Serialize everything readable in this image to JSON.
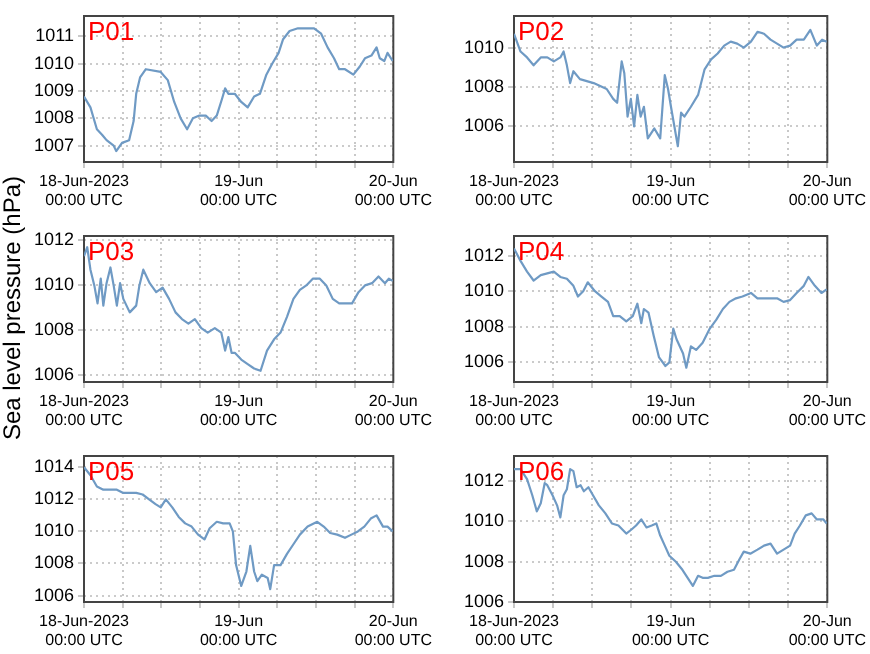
{
  "chart_data": [
    {
      "type": "line",
      "title": "P01",
      "xlim": [
        "2023-06-18T00:00",
        "2023-06-20T00:00"
      ],
      "xticks": [
        {
          "value": "2023-06-18T00:00",
          "label": "18-Jun-2023\n00:00 UTC"
        },
        {
          "value": "2023-06-18T06:00",
          "label": null
        },
        {
          "value": "2023-06-18T12:00",
          "label": null
        },
        {
          "value": "2023-06-18T18:00",
          "label": null
        },
        {
          "value": "2023-06-19T00:00",
          "label": "19-Jun\n00:00 UTC"
        },
        {
          "value": "2023-06-19T06:00",
          "label": null
        },
        {
          "value": "2023-06-19T12:00",
          "label": null
        },
        {
          "value": "2023-06-19T18:00",
          "label": null
        },
        {
          "value": "2023-06-20T00:00",
          "label": "20-Jun\n00:00 UTC"
        }
      ],
      "ylim": [
        1006.4,
        1011.75
      ],
      "yticks": [
        1007,
        1008,
        1009,
        1010,
        1011
      ],
      "grid": true,
      "marker": "none",
      "line_style": "solid",
      "x": [
        "2023-06-18T00:00",
        "2023-06-18T01:00",
        "2023-06-18T02:00",
        "2023-06-18T02:48",
        "2023-06-18T03:30",
        "2023-06-18T04:36",
        "2023-06-18T05:00",
        "2023-06-18T05:54",
        "2023-06-18T07:00",
        "2023-06-18T07:42",
        "2023-06-18T08:06",
        "2023-06-18T08:42",
        "2023-06-18T09:36",
        "2023-06-18T11:54",
        "2023-06-18T13:00",
        "2023-06-18T14:00",
        "2023-06-18T15:00",
        "2023-06-18T16:00",
        "2023-06-18T16:54",
        "2023-06-18T17:54",
        "2023-06-18T18:54",
        "2023-06-18T19:48",
        "2023-06-18T20:36",
        "2023-06-18T21:24",
        "2023-06-18T21:54",
        "2023-06-18T22:24",
        "2023-06-18T23:24",
        "2023-06-19T00:24",
        "2023-06-19T01:24",
        "2023-06-19T02:24",
        "2023-06-19T03:18",
        "2023-06-19T04:18",
        "2023-06-19T05:12",
        "2023-06-19T06:12",
        "2023-06-19T06:54",
        "2023-06-19T07:54",
        "2023-06-19T09:12",
        "2023-06-19T11:42",
        "2023-06-19T12:48",
        "2023-06-19T13:48",
        "2023-06-19T14:48",
        "2023-06-19T15:36",
        "2023-06-19T16:30",
        "2023-06-19T17:48",
        "2023-06-19T18:48",
        "2023-06-19T19:36",
        "2023-06-19T20:36",
        "2023-06-19T21:24",
        "2023-06-19T21:54",
        "2023-06-19T22:36",
        "2023-06-19T23:06",
        "2023-06-19T23:54"
      ],
      "series": [
        {
          "color": "#6f9ac4",
          "values": [
            1008.8,
            1008.4,
            1007.6,
            1007.4,
            1007.2,
            1007.0,
            1006.8,
            1007.1,
            1007.2,
            1007.9,
            1008.9,
            1009.5,
            1009.8,
            1009.7,
            1009.4,
            1008.6,
            1008.0,
            1007.6,
            1008.0,
            1008.1,
            1008.1,
            1007.9,
            1008.1,
            1008.7,
            1009.1,
            1008.9,
            1008.9,
            1008.6,
            1008.4,
            1008.8,
            1008.9,
            1009.6,
            1010.0,
            1010.4,
            1010.9,
            1011.2,
            1011.3,
            1011.3,
            1011.1,
            1010.6,
            1010.2,
            1009.8,
            1009.8,
            1009.6,
            1009.9,
            1010.2,
            1010.3,
            1010.6,
            1010.2,
            1010.1,
            1010.4,
            1010.1
          ]
        }
      ]
    },
    {
      "type": "line",
      "title": "P02",
      "xlim": [
        "2023-06-18T00:00",
        "2023-06-20T00:00"
      ],
      "xticks": [
        {
          "value": "2023-06-18T00:00",
          "label": "18-Jun-2023\n00:00 UTC"
        },
        {
          "value": "2023-06-18T06:00",
          "label": null
        },
        {
          "value": "2023-06-18T12:00",
          "label": null
        },
        {
          "value": "2023-06-18T18:00",
          "label": null
        },
        {
          "value": "2023-06-19T00:00",
          "label": "19-Jun\n00:00 UTC"
        },
        {
          "value": "2023-06-19T06:00",
          "label": null
        },
        {
          "value": "2023-06-19T12:00",
          "label": null
        },
        {
          "value": "2023-06-19T18:00",
          "label": null
        },
        {
          "value": "2023-06-20T00:00",
          "label": "20-Jun\n00:00 UTC"
        }
      ],
      "ylim": [
        1004.2,
        1011.6
      ],
      "yticks": [
        1006,
        1008,
        1010
      ],
      "grid": true,
      "marker": "none",
      "line_style": "solid",
      "x": [
        "2023-06-18T00:00",
        "2023-06-18T01:00",
        "2023-06-18T02:00",
        "2023-06-18T03:00",
        "2023-06-18T04:06",
        "2023-06-18T05:06",
        "2023-06-18T06:06",
        "2023-06-18T07:06",
        "2023-06-18T07:36",
        "2023-06-18T08:06",
        "2023-06-18T08:36",
        "2023-06-18T09:06",
        "2023-06-18T10:06",
        "2023-06-18T12:12",
        "2023-06-18T14:12",
        "2023-06-18T15:12",
        "2023-06-18T15:48",
        "2023-06-18T16:30",
        "2023-06-18T16:54",
        "2023-06-18T17:24",
        "2023-06-18T17:54",
        "2023-06-18T18:24",
        "2023-06-18T18:54",
        "2023-06-18T19:24",
        "2023-06-18T19:54",
        "2023-06-18T20:30",
        "2023-06-18T21:30",
        "2023-06-18T22:24",
        "2023-06-18T23:06",
        "2023-06-18T23:36",
        "2023-06-19T00:06",
        "2023-06-19T01:06",
        "2023-06-19T01:36",
        "2023-06-19T02:06",
        "2023-06-19T03:06",
        "2023-06-19T04:12",
        "2023-06-19T05:12",
        "2023-06-19T06:12",
        "2023-06-19T07:12",
        "2023-06-19T08:12",
        "2023-06-19T09:12",
        "2023-06-19T10:12",
        "2023-06-19T11:12",
        "2023-06-19T12:18",
        "2023-06-19T13:18",
        "2023-06-19T14:18",
        "2023-06-19T15:18",
        "2023-06-19T16:18",
        "2023-06-19T17:18",
        "2023-06-19T18:18",
        "2023-06-19T19:18",
        "2023-06-19T20:24",
        "2023-06-19T21:24",
        "2023-06-19T22:24",
        "2023-06-19T23:12",
        "2023-06-19T23:54"
      ],
      "series": [
        {
          "color": "#6f9ac4",
          "values": [
            1010.7,
            1009.8,
            1009.5,
            1009.1,
            1009.5,
            1009.5,
            1009.3,
            1009.5,
            1009.8,
            1009.1,
            1008.2,
            1008.8,
            1008.4,
            1008.2,
            1007.9,
            1007.4,
            1007.2,
            1009.3,
            1008.7,
            1006.5,
            1007.4,
            1006.0,
            1007.6,
            1006.5,
            1007.0,
            1005.4,
            1005.9,
            1005.4,
            1008.6,
            1007.9,
            1006.9,
            1005.0,
            1006.7,
            1006.5,
            1007.0,
            1007.6,
            1008.9,
            1009.4,
            1009.7,
            1010.1,
            1010.3,
            1010.2,
            1010.0,
            1010.3,
            1010.8,
            1010.7,
            1010.4,
            1010.2,
            1010.0,
            1010.1,
            1010.4,
            1010.4,
            1010.9,
            1010.1,
            1010.4,
            1010.3
          ]
        }
      ]
    },
    {
      "type": "line",
      "title": "P03",
      "ylabel": "Sea level pressure (hPa)",
      "xlim": [
        "2023-06-18T00:00",
        "2023-06-20T00:00"
      ],
      "xticks": [
        {
          "value": "2023-06-18T00:00",
          "label": "18-Jun-2023\n00:00 UTC"
        },
        {
          "value": "2023-06-18T06:00",
          "label": null
        },
        {
          "value": "2023-06-18T12:00",
          "label": null
        },
        {
          "value": "2023-06-18T18:00",
          "label": null
        },
        {
          "value": "2023-06-19T00:00",
          "label": "19-Jun\n00:00 UTC"
        },
        {
          "value": "2023-06-19T06:00",
          "label": null
        },
        {
          "value": "2023-06-19T12:00",
          "label": null
        },
        {
          "value": "2023-06-19T18:00",
          "label": null
        },
        {
          "value": "2023-06-20T00:00",
          "label": "20-Jun\n00:00 UTC"
        }
      ],
      "ylim": [
        1005.7,
        1012.2
      ],
      "yticks": [
        1006,
        1008,
        1010,
        1012
      ],
      "grid": true,
      "marker": "none",
      "line_style": "solid",
      "x": [
        "2023-06-18T00:00",
        "2023-06-18T00:30",
        "2023-06-18T01:00",
        "2023-06-18T01:36",
        "2023-06-18T02:06",
        "2023-06-18T02:36",
        "2023-06-18T03:00",
        "2023-06-18T03:30",
        "2023-06-18T04:06",
        "2023-06-18T04:36",
        "2023-06-18T05:06",
        "2023-06-18T05:36",
        "2023-06-18T06:06",
        "2023-06-18T07:06",
        "2023-06-18T08:06",
        "2023-06-18T08:36",
        "2023-06-18T09:12",
        "2023-06-18T10:12",
        "2023-06-18T11:12",
        "2023-06-18T12:12",
        "2023-06-18T13:12",
        "2023-06-18T14:12",
        "2023-06-18T15:12",
        "2023-06-18T16:12",
        "2023-06-18T17:12",
        "2023-06-18T18:12",
        "2023-06-18T19:12",
        "2023-06-18T20:18",
        "2023-06-18T21:18",
        "2023-06-18T21:54",
        "2023-06-18T22:24",
        "2023-06-18T22:54",
        "2023-06-18T23:24",
        "2023-06-19T00:24",
        "2023-06-19T01:24",
        "2023-06-19T02:24",
        "2023-06-19T03:24",
        "2023-06-19T04:24",
        "2023-06-19T05:30",
        "2023-06-19T06:30",
        "2023-06-19T07:30",
        "2023-06-19T08:30",
        "2023-06-19T09:30",
        "2023-06-19T10:30",
        "2023-06-19T11:30",
        "2023-06-19T12:36",
        "2023-06-19T13:36",
        "2023-06-19T14:36",
        "2023-06-19T15:36",
        "2023-06-19T16:36",
        "2023-06-19T17:36",
        "2023-06-19T18:36",
        "2023-06-19T19:36",
        "2023-06-19T20:42",
        "2023-06-19T21:42",
        "2023-06-19T22:42",
        "2023-06-19T23:18",
        "2023-06-19T23:54"
      ],
      "series": [
        {
          "color": "#6f9ac4",
          "values": [
            1011.3,
            1011.7,
            1010.7,
            1010.0,
            1009.2,
            1010.3,
            1009.1,
            1010.1,
            1010.8,
            1010.0,
            1009.1,
            1010.1,
            1009.4,
            1008.8,
            1009.1,
            1010.0,
            1010.7,
            1010.1,
            1009.7,
            1009.9,
            1009.4,
            1008.8,
            1008.5,
            1008.3,
            1008.5,
            1008.1,
            1007.9,
            1008.1,
            1007.9,
            1007.1,
            1007.7,
            1007.0,
            1007.0,
            1006.7,
            1006.5,
            1006.3,
            1006.2,
            1007.1,
            1007.6,
            1007.9,
            1008.6,
            1009.4,
            1009.8,
            1010.0,
            1010.3,
            1010.3,
            1010.0,
            1009.4,
            1009.2,
            1009.2,
            1009.2,
            1009.7,
            1010.0,
            1010.1,
            1010.4,
            1010.1,
            1010.3,
            1010.2
          ]
        }
      ]
    },
    {
      "type": "line",
      "title": "P04",
      "xlim": [
        "2023-06-18T00:00",
        "2023-06-20T00:00"
      ],
      "xticks": [
        {
          "value": "2023-06-18T00:00",
          "label": "18-Jun-2023\n00:00 UTC"
        },
        {
          "value": "2023-06-18T06:00",
          "label": null
        },
        {
          "value": "2023-06-18T12:00",
          "label": null
        },
        {
          "value": "2023-06-18T18:00",
          "label": null
        },
        {
          "value": "2023-06-19T00:00",
          "label": "19-Jun\n00:00 UTC"
        },
        {
          "value": "2023-06-19T06:00",
          "label": null
        },
        {
          "value": "2023-06-19T12:00",
          "label": null
        },
        {
          "value": "2023-06-19T18:00",
          "label": null
        },
        {
          "value": "2023-06-20T00:00",
          "label": "20-Jun\n00:00 UTC"
        }
      ],
      "ylim": [
        1004.9,
        1013.1
      ],
      "yticks": [
        1006,
        1008,
        1010,
        1012
      ],
      "grid": true,
      "marker": "none",
      "line_style": "solid",
      "x": [
        "2023-06-18T00:00",
        "2023-06-18T01:00",
        "2023-06-18T02:00",
        "2023-06-18T03:00",
        "2023-06-18T04:06",
        "2023-06-18T06:06",
        "2023-06-18T07:06",
        "2023-06-18T08:06",
        "2023-06-18T09:06",
        "2023-06-18T09:48",
        "2023-06-18T10:36",
        "2023-06-18T11:18",
        "2023-06-18T12:24",
        "2023-06-18T13:24",
        "2023-06-18T14:24",
        "2023-06-18T15:12",
        "2023-06-18T16:12",
        "2023-06-18T17:12",
        "2023-06-18T18:12",
        "2023-06-18T18:54",
        "2023-06-18T19:30",
        "2023-06-18T19:54",
        "2023-06-18T20:36",
        "2023-06-18T21:24",
        "2023-06-18T22:12",
        "2023-06-18T23:12",
        "2023-06-18T23:48",
        "2023-06-19T00:24",
        "2023-06-19T00:54",
        "2023-06-19T01:54",
        "2023-06-19T02:24",
        "2023-06-19T03:06",
        "2023-06-19T03:54",
        "2023-06-19T04:54",
        "2023-06-19T06:00",
        "2023-06-19T07:00",
        "2023-06-19T08:00",
        "2023-06-19T09:00",
        "2023-06-19T10:00",
        "2023-06-19T11:00",
        "2023-06-19T12:18",
        "2023-06-19T13:18",
        "2023-06-19T14:18",
        "2023-06-19T16:18",
        "2023-06-19T17:18",
        "2023-06-19T18:18",
        "2023-06-19T19:18",
        "2023-06-19T20:24",
        "2023-06-19T21:06",
        "2023-06-19T22:06",
        "2023-06-19T23:06",
        "2023-06-19T23:54"
      ],
      "series": [
        {
          "color": "#6f9ac4",
          "values": [
            1012.4,
            1011.7,
            1011.1,
            1010.6,
            1010.9,
            1011.1,
            1010.8,
            1010.7,
            1010.3,
            1009.7,
            1010.0,
            1010.5,
            1010.0,
            1009.7,
            1009.4,
            1008.6,
            1008.6,
            1008.3,
            1008.6,
            1009.3,
            1008.2,
            1009.0,
            1008.8,
            1007.5,
            1006.3,
            1005.8,
            1006.0,
            1007.9,
            1007.3,
            1006.5,
            1005.7,
            1006.9,
            1006.7,
            1007.1,
            1007.9,
            1008.4,
            1009.0,
            1009.4,
            1009.6,
            1009.7,
            1009.9,
            1009.6,
            1009.6,
            1009.6,
            1009.4,
            1009.5,
            1009.9,
            1010.3,
            1010.8,
            1010.3,
            1009.9,
            1010.1
          ]
        }
      ]
    },
    {
      "type": "line",
      "title": "P05",
      "xlim": [
        "2023-06-18T00:00",
        "2023-06-20T00:00"
      ],
      "xticks": [
        {
          "value": "2023-06-18T00:00",
          "label": "18-Jun-2023\n00:00 UTC"
        },
        {
          "value": "2023-06-18T06:00",
          "label": null
        },
        {
          "value": "2023-06-18T12:00",
          "label": null
        },
        {
          "value": "2023-06-18T18:00",
          "label": null
        },
        {
          "value": "2023-06-19T00:00",
          "label": "19-Jun\n00:00 UTC"
        },
        {
          "value": "2023-06-19T06:00",
          "label": null
        },
        {
          "value": "2023-06-19T12:00",
          "label": null
        },
        {
          "value": "2023-06-19T18:00",
          "label": null
        },
        {
          "value": "2023-06-20T00:00",
          "label": "20-Jun\n00:00 UTC"
        }
      ],
      "ylim": [
        1005.6,
        1014.7
      ],
      "yticks": [
        1006,
        1008,
        1010,
        1012,
        1014
      ],
      "grid": true,
      "marker": "none",
      "line_style": "solid",
      "x": [
        "2023-06-18T00:00",
        "2023-06-18T01:00",
        "2023-06-18T02:00",
        "2023-06-18T03:00",
        "2023-06-18T05:06",
        "2023-06-18T06:06",
        "2023-06-18T08:06",
        "2023-06-18T09:06",
        "2023-06-18T10:06",
        "2023-06-18T11:06",
        "2023-06-18T11:54",
        "2023-06-18T12:42",
        "2023-06-18T13:42",
        "2023-06-18T14:42",
        "2023-06-18T15:42",
        "2023-06-18T16:42",
        "2023-06-18T17:42",
        "2023-06-18T18:42",
        "2023-06-18T19:30",
        "2023-06-18T20:36",
        "2023-06-18T21:36",
        "2023-06-18T22:36",
        "2023-06-18T23:06",
        "2023-06-18T23:36",
        "2023-06-19T00:24",
        "2023-06-19T01:12",
        "2023-06-19T01:48",
        "2023-06-19T02:24",
        "2023-06-19T02:54",
        "2023-06-19T03:36",
        "2023-06-19T04:30",
        "2023-06-19T04:54",
        "2023-06-19T05:30",
        "2023-06-19T06:30",
        "2023-06-19T07:30",
        "2023-06-19T08:30",
        "2023-06-19T09:30",
        "2023-06-19T10:42",
        "2023-06-19T12:12",
        "2023-06-19T13:12",
        "2023-06-19T14:12",
        "2023-06-19T15:18",
        "2023-06-19T16:30",
        "2023-06-19T17:30",
        "2023-06-19T18:30",
        "2023-06-19T19:30",
        "2023-06-19T20:30",
        "2023-06-19T21:24",
        "2023-06-19T22:24",
        "2023-06-19T23:06",
        "2023-06-19T23:54"
      ],
      "series": [
        {
          "color": "#6f9ac4",
          "values": [
            1014.0,
            1013.5,
            1012.8,
            1012.6,
            1012.6,
            1012.4,
            1012.4,
            1012.3,
            1012.0,
            1011.7,
            1011.5,
            1012.0,
            1011.5,
            1010.9,
            1010.5,
            1010.3,
            1009.8,
            1009.5,
            1010.2,
            1010.6,
            1010.5,
            1010.5,
            1010.0,
            1007.9,
            1006.6,
            1007.5,
            1009.1,
            1007.5,
            1006.9,
            1007.3,
            1007.1,
            1006.4,
            1007.9,
            1007.9,
            1008.6,
            1009.2,
            1009.8,
            1010.3,
            1010.6,
            1010.3,
            1009.9,
            1009.8,
            1009.6,
            1009.8,
            1010.0,
            1010.3,
            1010.8,
            1011.0,
            1010.3,
            1010.3,
            1010.0
          ]
        }
      ]
    },
    {
      "type": "line",
      "title": "P06",
      "xlim": [
        "2023-06-18T00:00",
        "2023-06-20T00:00"
      ],
      "xticks": [
        {
          "value": "2023-06-18T00:00",
          "label": "18-Jun-2023\n00:00 UTC"
        },
        {
          "value": "2023-06-18T06:00",
          "label": null
        },
        {
          "value": "2023-06-18T12:00",
          "label": null
        },
        {
          "value": "2023-06-18T18:00",
          "label": null
        },
        {
          "value": "2023-06-19T00:00",
          "label": "19-Jun\n00:00 UTC"
        },
        {
          "value": "2023-06-19T06:00",
          "label": null
        },
        {
          "value": "2023-06-19T12:00",
          "label": null
        },
        {
          "value": "2023-06-19T18:00",
          "label": null
        },
        {
          "value": "2023-06-20T00:00",
          "label": "20-Jun\n00:00 UTC"
        }
      ],
      "ylim": [
        1006,
        1013.25
      ],
      "yticks": [
        1006,
        1008,
        1010,
        1012
      ],
      "grid": true,
      "marker": "none",
      "line_style": "solid",
      "x": [
        "2023-06-18T00:00",
        "2023-06-18T01:00",
        "2023-06-18T02:00",
        "2023-06-18T02:48",
        "2023-06-18T03:30",
        "2023-06-18T04:06",
        "2023-06-18T04:42",
        "2023-06-18T05:06",
        "2023-06-18T05:54",
        "2023-06-18T06:36",
        "2023-06-18T07:06",
        "2023-06-18T07:36",
        "2023-06-18T08:06",
        "2023-06-18T08:36",
        "2023-06-18T09:06",
        "2023-06-18T09:36",
        "2023-06-18T10:12",
        "2023-06-18T10:42",
        "2023-06-18T11:24",
        "2023-06-18T12:06",
        "2023-06-18T13:00",
        "2023-06-18T14:00",
        "2023-06-18T15:00",
        "2023-06-18T16:00",
        "2023-06-18T17:12",
        "2023-06-18T18:00",
        "2023-06-18T18:42",
        "2023-06-18T19:30",
        "2023-06-18T20:18",
        "2023-06-18T21:06",
        "2023-06-18T21:48",
        "2023-06-18T22:24",
        "2023-06-18T23:06",
        "2023-06-18T23:48",
        "2023-06-19T00:48",
        "2023-06-19T01:48",
        "2023-06-19T02:36",
        "2023-06-19T03:24",
        "2023-06-19T04:12",
        "2023-06-19T04:54",
        "2023-06-19T05:42",
        "2023-06-19T06:42",
        "2023-06-19T07:42",
        "2023-06-19T08:42",
        "2023-06-19T09:42",
        "2023-06-19T10:30",
        "2023-06-19T11:12",
        "2023-06-19T12:12",
        "2023-06-19T13:18",
        "2023-06-19T14:18",
        "2023-06-19T15:18",
        "2023-06-19T16:18",
        "2023-06-19T17:18",
        "2023-06-19T18:18",
        "2023-06-19T19:00",
        "2023-06-19T19:48",
        "2023-06-19T20:42",
        "2023-06-19T21:36",
        "2023-06-19T22:24",
        "2023-06-19T23:24",
        "2023-06-19T23:54"
      ],
      "series": [
        {
          "color": "#6f9ac4",
          "values": [
            1012.6,
            1012.6,
            1012.1,
            1011.3,
            1010.5,
            1010.9,
            1011.9,
            1011.8,
            1011.3,
            1010.8,
            1010.2,
            1011.3,
            1011.6,
            1012.6,
            1012.5,
            1011.7,
            1011.8,
            1011.5,
            1011.7,
            1011.3,
            1010.8,
            1010.4,
            1009.9,
            1009.8,
            1009.4,
            1009.6,
            1009.8,
            1010.1,
            1009.7,
            1009.8,
            1009.9,
            1009.3,
            1008.8,
            1008.3,
            1008.0,
            1007.6,
            1007.2,
            1006.8,
            1007.3,
            1007.2,
            1007.2,
            1007.3,
            1007.3,
            1007.5,
            1007.6,
            1008.1,
            1008.5,
            1008.4,
            1008.6,
            1008.8,
            1008.9,
            1008.4,
            1008.6,
            1008.8,
            1009.4,
            1009.8,
            1010.3,
            1010.4,
            1010.1,
            1010.1,
            1009.9
          ]
        }
      ]
    }
  ]
}
